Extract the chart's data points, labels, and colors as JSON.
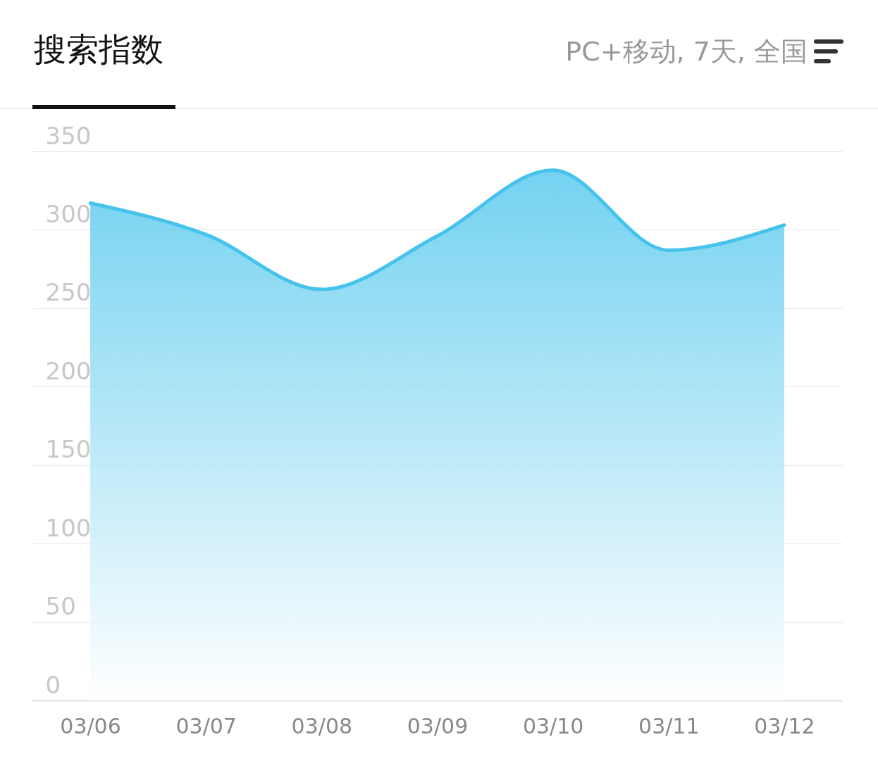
{
  "chart_data": {
    "type": "area",
    "title": "搜索指数",
    "subtitle": "PC+移动, 7天, 全国",
    "categories": [
      "03/06",
      "03/07",
      "03/08",
      "03/09",
      "03/10",
      "03/11",
      "03/12"
    ],
    "series": [
      {
        "color": "#45c3ec",
        "values": [
          317,
          297,
          262,
          296,
          338,
          287,
          303
        ]
      }
    ],
    "ylim": [
      0,
      350
    ],
    "yticks": [
      0,
      50,
      100,
      150,
      200,
      250,
      300,
      350
    ],
    "grid": "y",
    "marker": "none"
  }
}
